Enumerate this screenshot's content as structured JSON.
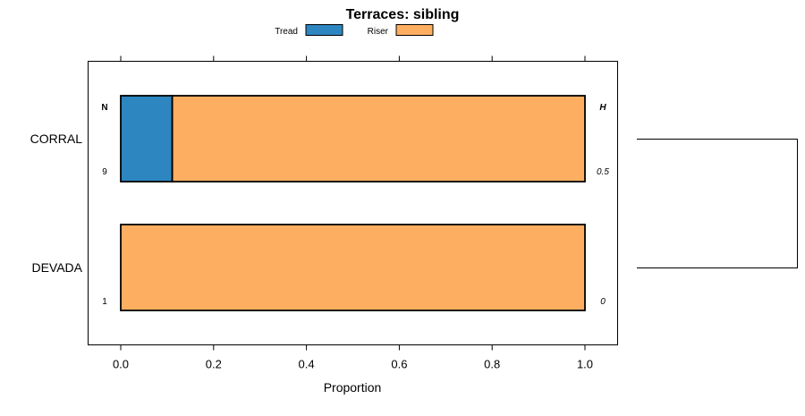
{
  "chart_data": {
    "type": "bar",
    "orientation": "horizontal",
    "stacked": true,
    "title": "Terraces: sibling",
    "xlabel": "Proportion",
    "ylabel": "",
    "xlim": [
      -0.07,
      1.07
    ],
    "x_ticks": [
      0.0,
      0.2,
      0.4,
      0.6,
      0.8,
      1.0
    ],
    "x_tick_labels": [
      "0.0",
      "0.2",
      "0.4",
      "0.6",
      "0.8",
      "1.0"
    ],
    "categories": [
      "CORRAL",
      "DEVADA"
    ],
    "series": [
      {
        "name": "Tread",
        "color": "#2e86c1",
        "values": [
          0.111,
          0.0
        ]
      },
      {
        "name": "Riser",
        "color": "#fdae61",
        "values": [
          0.889,
          1.0
        ]
      }
    ],
    "legend": {
      "position": "top",
      "entries": [
        "Tread",
        "Riser"
      ]
    },
    "side_columns": {
      "left_header": "N",
      "left_values": [
        "9",
        "1"
      ],
      "right_header": "H",
      "right_values": [
        "0.5",
        "0"
      ]
    },
    "dendrogram": {
      "position": "right",
      "joins": [
        "CORRAL",
        "DEVADA"
      ]
    },
    "grid": false
  }
}
